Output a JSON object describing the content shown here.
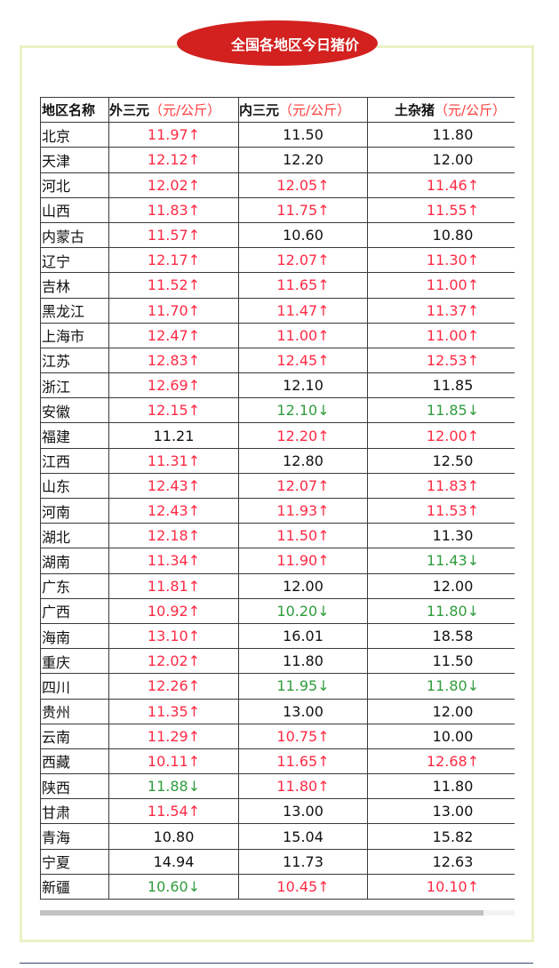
{
  "title": "全国各地区今日猪价",
  "header": {
    "region": "地区名称",
    "col1": "外三元",
    "col1_unit": "（元/公斤）",
    "col2": "内三元",
    "col2_unit": "（元/公斤）",
    "col3": "土杂猪",
    "col3_unit": "（元/公斤）"
  },
  "colors": {
    "up": "#ff2a44",
    "down": "#2f9c3c",
    "title_bg": "#d2211f",
    "frame": "#e9f2c4"
  },
  "rows": [
    [
      "北京",
      "11.97↑",
      "11.50",
      "11.80"
    ],
    [
      "天津",
      "12.12↑",
      "12.20",
      "12.00"
    ],
    [
      "河北",
      "12.02↑",
      "12.05↑",
      "11.46↑"
    ],
    [
      "山西",
      "11.83↑",
      "11.75↑",
      "11.55↑"
    ],
    [
      "内蒙古",
      "11.57↑",
      "10.60",
      "10.80"
    ],
    [
      "辽宁",
      "12.17↑",
      "12.07↑",
      "11.30↑"
    ],
    [
      "吉林",
      "11.52↑",
      "11.65↑",
      "11.00↑"
    ],
    [
      "黑龙江",
      "11.70↑",
      "11.47↑",
      "11.37↑"
    ],
    [
      "上海市",
      "12.47↑",
      "11.00↑",
      "11.00↑"
    ],
    [
      "江苏",
      "12.83↑",
      "12.45↑",
      "12.53↑"
    ],
    [
      "浙江",
      "12.69↑",
      "12.10",
      "11.85"
    ],
    [
      "安徽",
      "12.15↑",
      "12.10↓",
      "11.85↓"
    ],
    [
      "福建",
      "11.21",
      "12.20↑",
      "12.00↑"
    ],
    [
      "江西",
      "11.31↑",
      "12.80",
      "12.50"
    ],
    [
      "山东",
      "12.43↑",
      "12.07↑",
      "11.83↑"
    ],
    [
      "河南",
      "12.43↑",
      "11.93↑",
      "11.53↑"
    ],
    [
      "湖北",
      "12.18↑",
      "11.50↑",
      "11.30"
    ],
    [
      "湖南",
      "11.34↑",
      "11.90↑",
      "11.43↓"
    ],
    [
      "广东",
      "11.81↑",
      "12.00",
      "12.00"
    ],
    [
      "广西",
      "10.92↑",
      "10.20↓",
      "11.80↓"
    ],
    [
      "海南",
      "13.10↑",
      "16.01",
      "18.58"
    ],
    [
      "重庆",
      "12.02↑",
      "11.80",
      "11.50"
    ],
    [
      "四川",
      "12.26↑",
      "11.95↓",
      "11.80↓"
    ],
    [
      "贵州",
      "11.35↑",
      "13.00",
      "12.00"
    ],
    [
      "云南",
      "11.29↑",
      "10.75↑",
      "10.00"
    ],
    [
      "西藏",
      "10.11↑",
      "11.65↑",
      "12.68↑"
    ],
    [
      "陕西",
      "11.88↓",
      "11.80↑",
      "11.80"
    ],
    [
      "甘肃",
      "11.54↑",
      "13.00",
      "13.00"
    ],
    [
      "青海",
      "10.80",
      "15.04",
      "15.82"
    ],
    [
      "宁夏",
      "14.94",
      "11.73",
      "12.63"
    ],
    [
      "新疆",
      "10.60↓",
      "10.45↑",
      "10.10↑"
    ]
  ],
  "scrollbar_position": 0.93
}
